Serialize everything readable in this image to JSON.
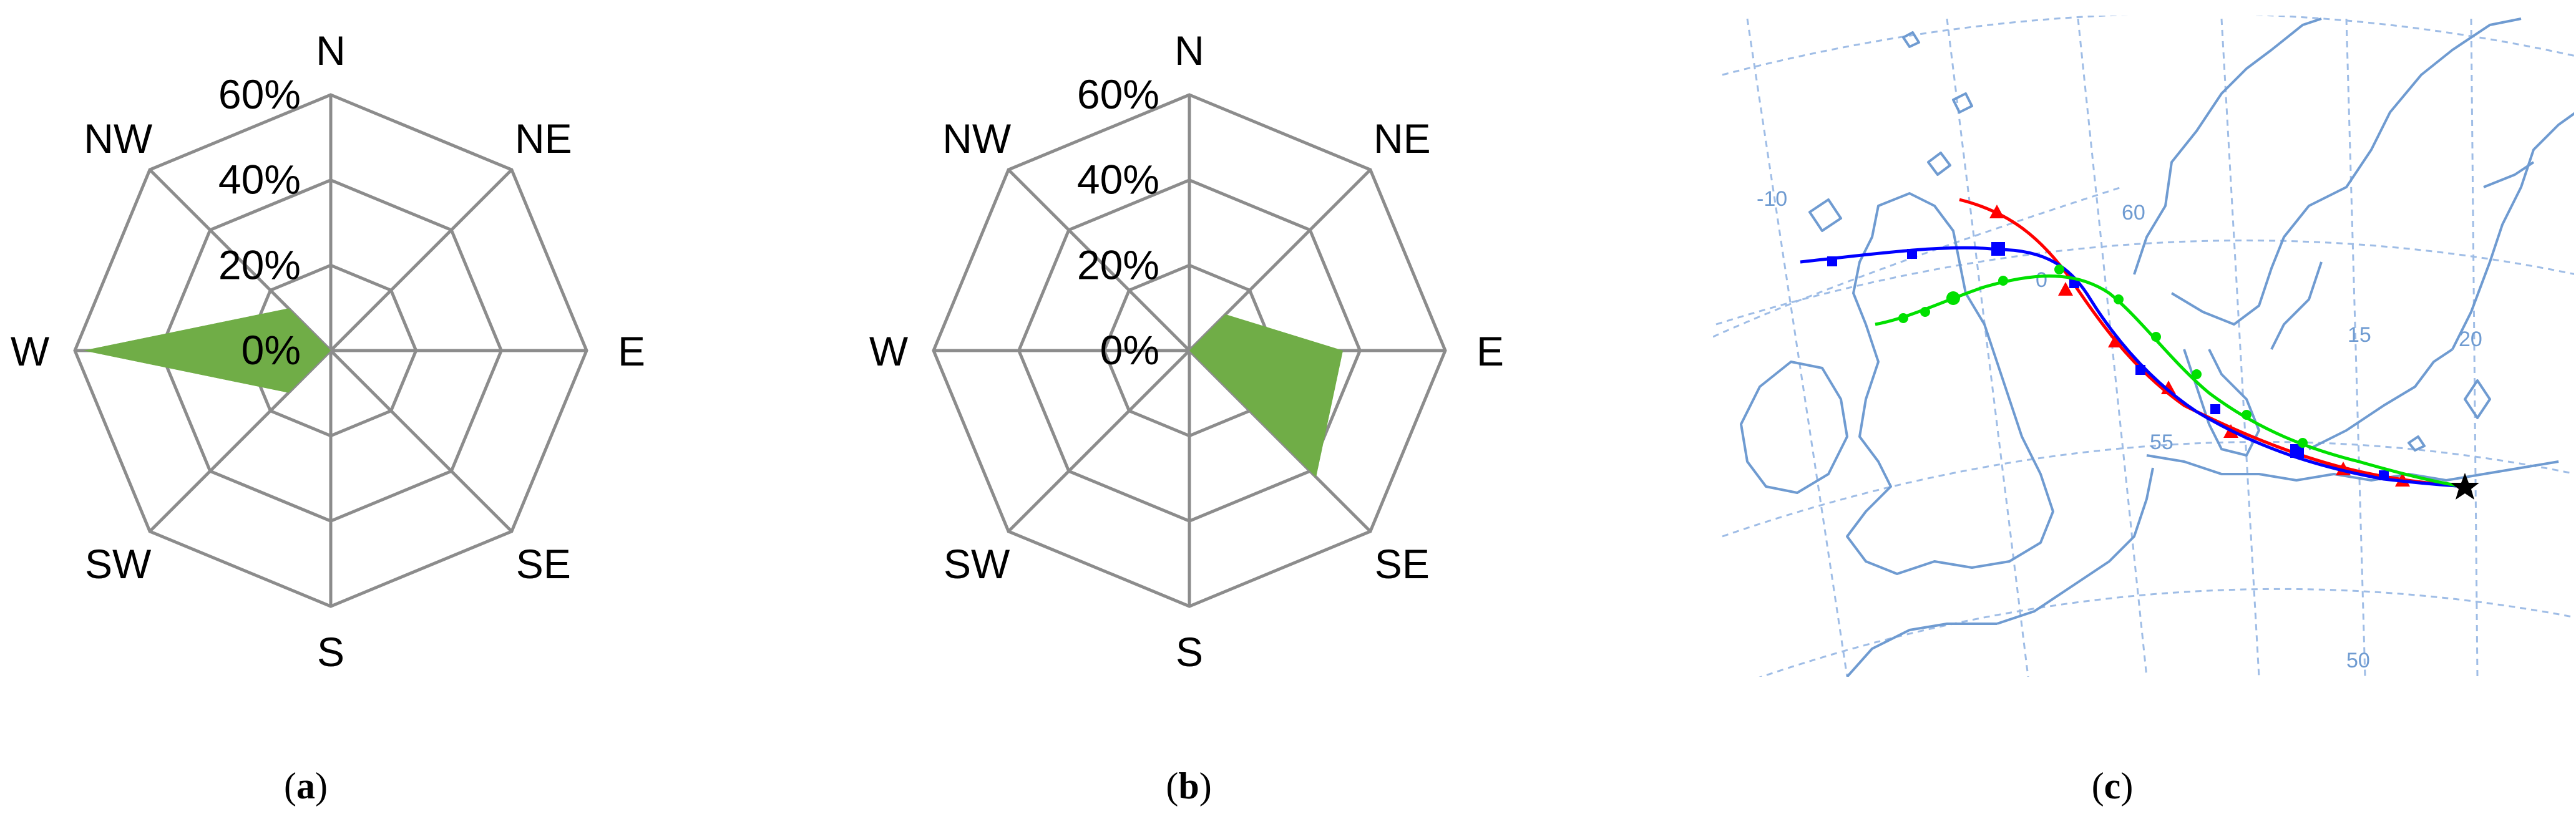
{
  "panels": [
    {
      "id": "a",
      "caption_letter": "a",
      "chart_data": {
        "type": "radar",
        "directions": [
          "N",
          "NE",
          "E",
          "SE",
          "S",
          "SW",
          "W",
          "NW"
        ],
        "radial_tick_labels": [
          "0%",
          "20%",
          "40%",
          "60%"
        ],
        "radial_range": [
          0,
          60
        ],
        "series": [
          {
            "values": [
              0,
              0,
              0,
              0,
              0,
              14,
              58,
              14
            ],
            "color": "#70ad47"
          }
        ],
        "grid": true
      }
    },
    {
      "id": "b",
      "caption_letter": "b",
      "chart_data": {
        "type": "radar",
        "directions": [
          "N",
          "NE",
          "E",
          "SE",
          "S",
          "SW",
          "W",
          "NW"
        ],
        "radial_tick_labels": [
          "0%",
          "20%",
          "40%",
          "60%"
        ],
        "radial_range": [
          0,
          60
        ],
        "series": [
          {
            "values": [
              0,
              12,
              36,
              42,
              0,
              0,
              0,
              0
            ],
            "color": "#70ad47"
          }
        ],
        "grid": true
      }
    }
  ],
  "map_panel": {
    "caption_letter": "c",
    "longitude_labels": [
      "-10",
      "0",
      "15",
      "20"
    ],
    "latitude_labels": [
      "60",
      "55",
      "50"
    ],
    "trajectories": [
      {
        "color": "#ff0000",
        "marker": "triangle-icon"
      },
      {
        "color": "#0000ff",
        "marker": "square-icon"
      },
      {
        "color": "#00e000",
        "marker": "circle-icon"
      }
    ],
    "endpoint_marker": "star-icon"
  }
}
